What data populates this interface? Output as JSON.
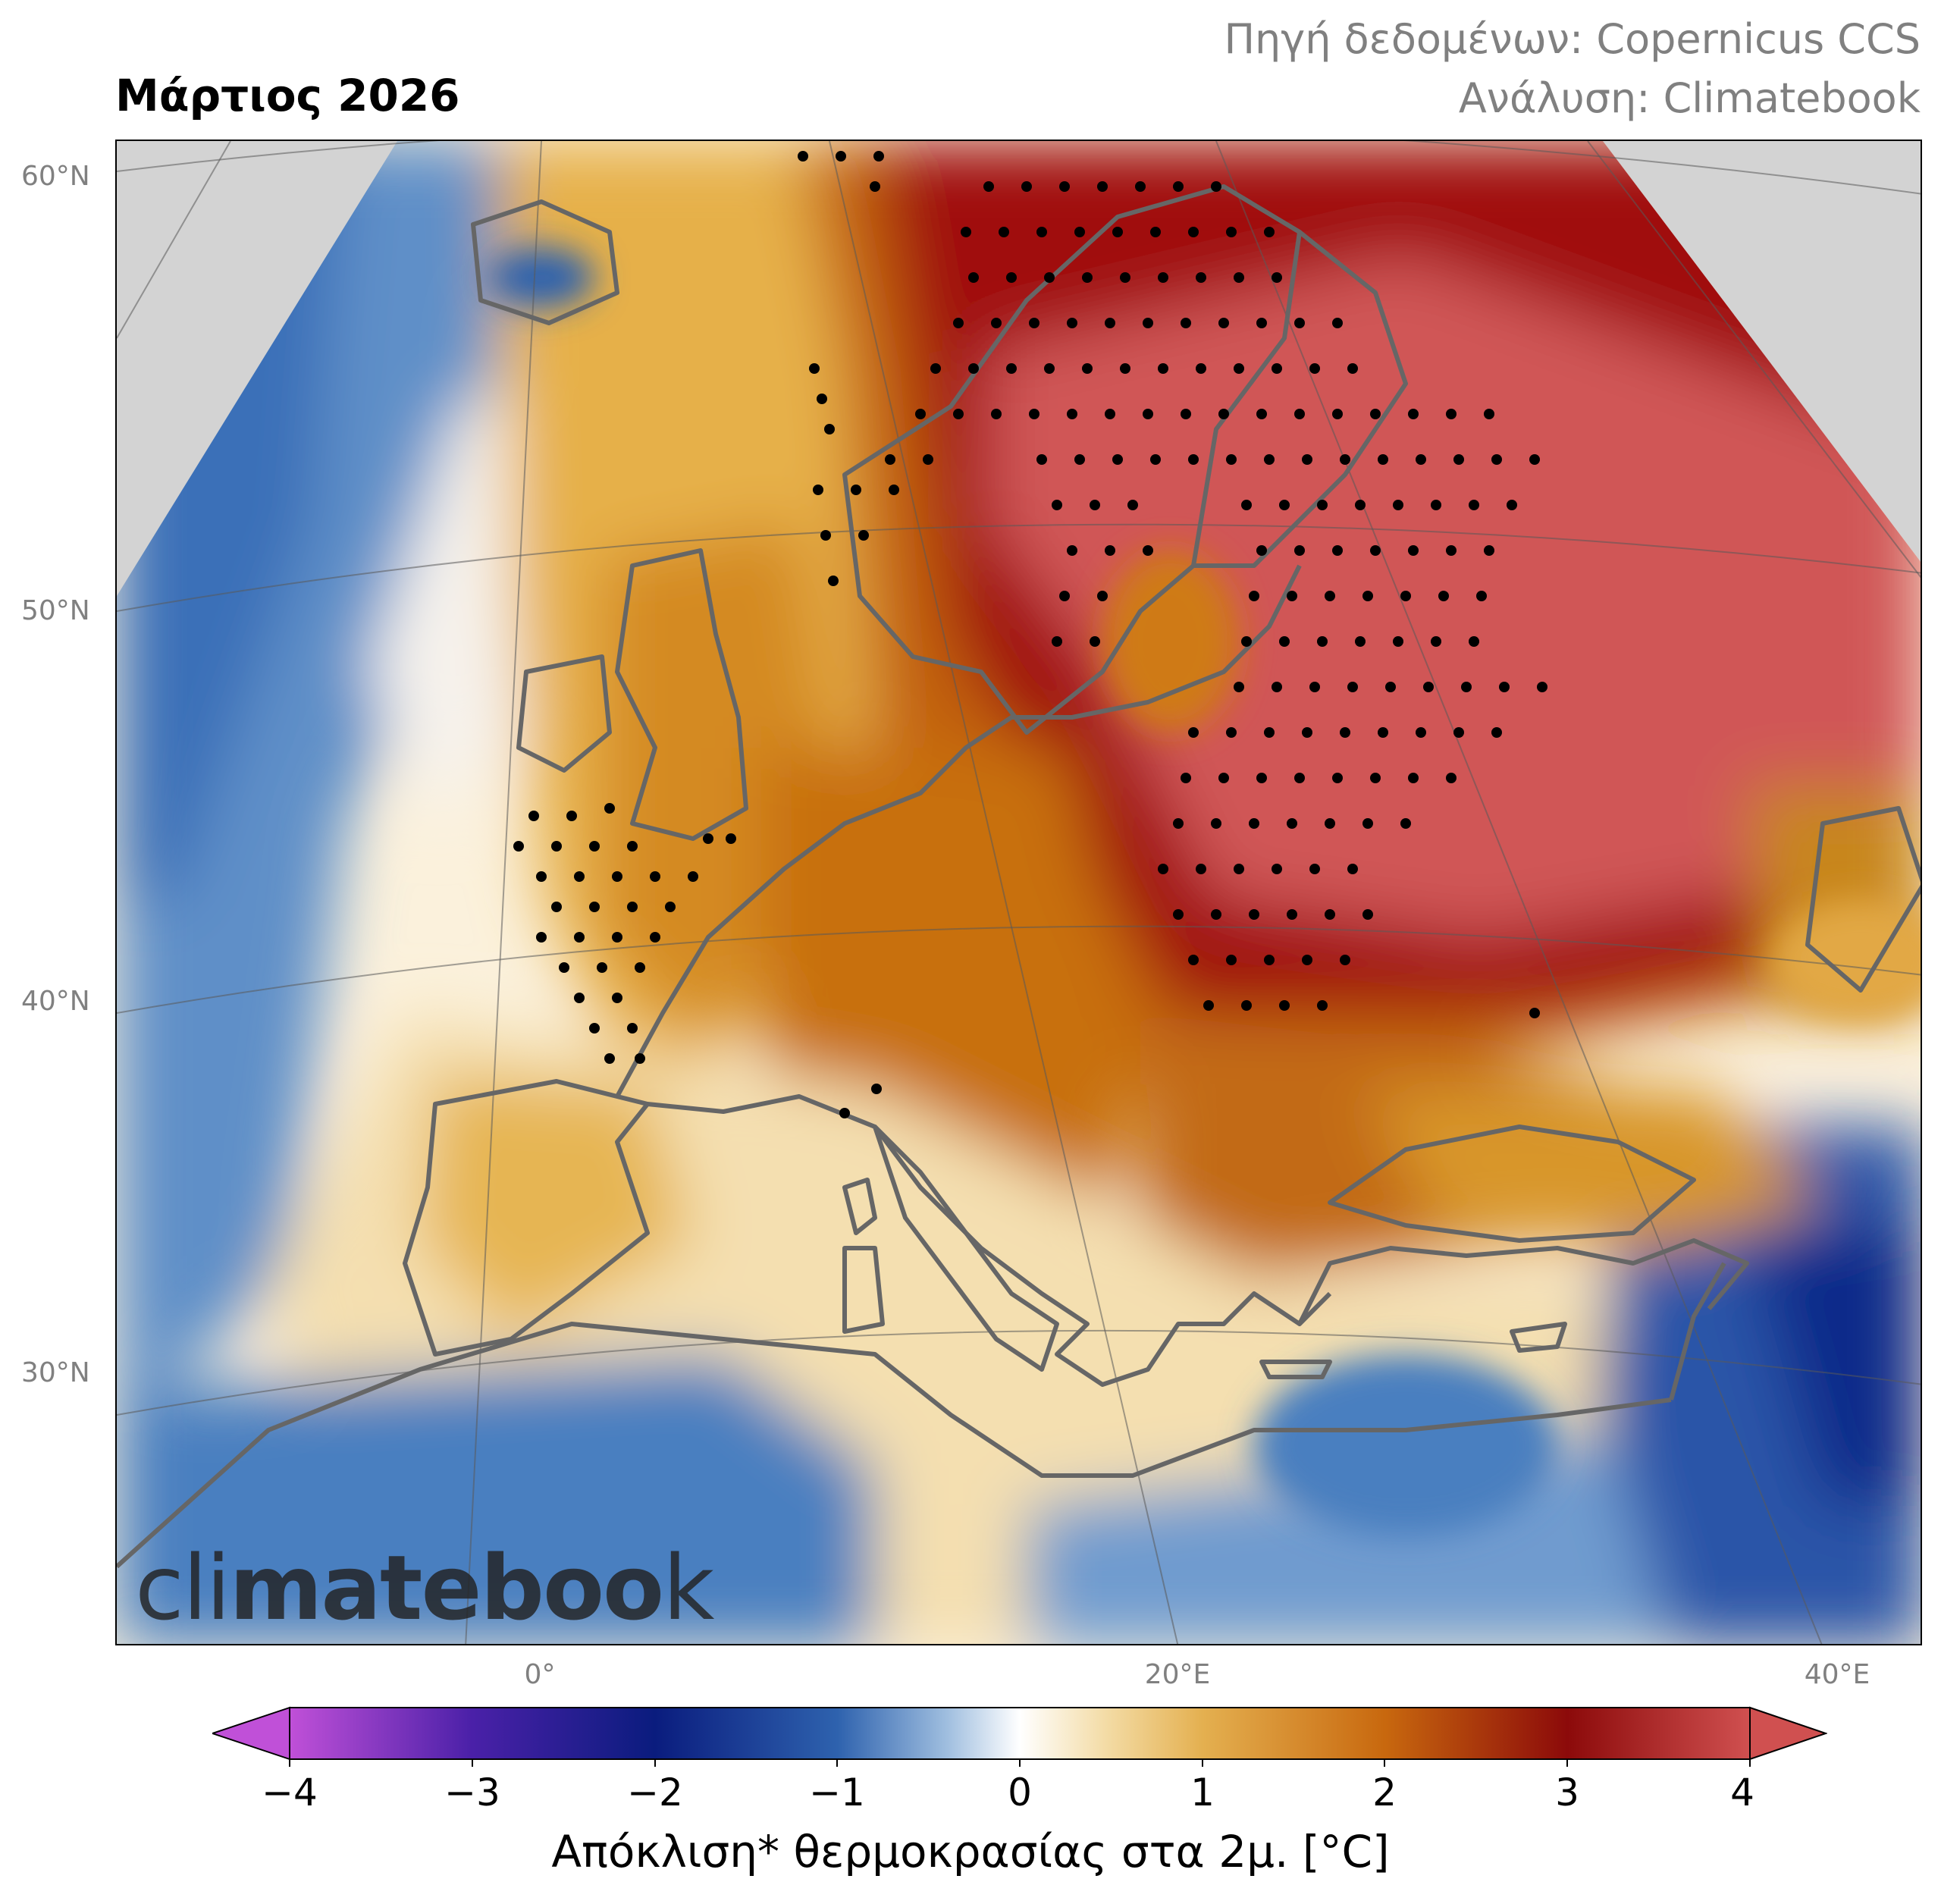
{
  "title": "Μάρτιος 2026",
  "source": {
    "line1": "Πηγή δεδομένων: Copernicus CCS",
    "line2": "Ανάλυση: Climatebook"
  },
  "watermark": {
    "part1": "cli",
    "part2": "mate",
    "part3": "boo",
    "part4": "k"
  },
  "lat_labels": [
    "60°N",
    "50°N",
    "40°N",
    "30°N"
  ],
  "lon_labels": [
    "0°",
    "20°E",
    "40°E"
  ],
  "colorbar": {
    "label": "Απόκλιση* θερμοκρασίας στα 2μ. [°C]",
    "min": -4,
    "max": 4,
    "ticks": [
      "−4",
      "−3",
      "−2",
      "−1",
      "0",
      "1",
      "2",
      "3",
      "4"
    ],
    "extend": "both",
    "colors": [
      "#c050d8",
      "#4a20a8",
      "#0a1c7e",
      "#2e62ae",
      "#7aa6d2",
      "#ffffff",
      "#e8c57c",
      "#d08a1a",
      "#8c0a0a",
      "#d05050"
    ]
  },
  "map_colors": {
    "cold": "#3a6fb8",
    "deep_cold": "#0a2a8a",
    "neutral": "#fdf6e6",
    "warm": "#e4a840",
    "hot": "#c2620e",
    "very_hot": "#a00e0e",
    "extreme": "#d05656",
    "coast": "#666666",
    "outside": "#d3d3d3"
  }
}
